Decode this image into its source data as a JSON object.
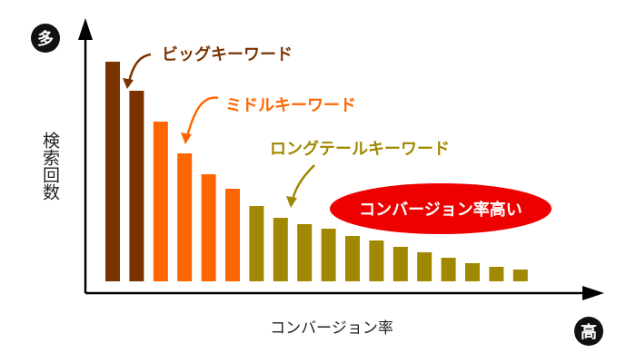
{
  "chart_data": {
    "type": "bar",
    "title": "",
    "xlabel": "コンバージョン率",
    "ylabel": "検索回数",
    "y_axis_top_label": "多",
    "x_axis_end_label": "高",
    "values": [
      242,
      210,
      176,
      141,
      118,
      102,
      83,
      70,
      63,
      58,
      50,
      45,
      38,
      32,
      26,
      20,
      16,
      13
    ],
    "groups": [
      {
        "name": "ビッグキーワード",
        "color": "#7a3300",
        "count": 2
      },
      {
        "name": "ミドルキーワード",
        "color": "#ff6600",
        "count": 4
      },
      {
        "name": "ロングテールキーワード",
        "color": "#a08800",
        "count": 12
      }
    ],
    "callout": {
      "text": "コンバージョン率高い",
      "color": "#ee0000"
    },
    "ylim": [
      0,
      260
    ]
  }
}
